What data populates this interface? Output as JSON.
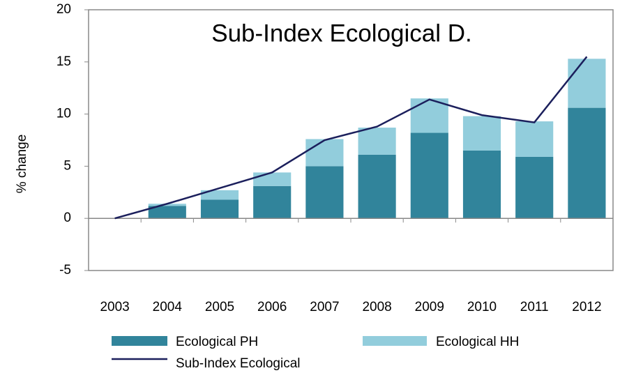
{
  "chart_data": {
    "type": "bar",
    "stacked": true,
    "title": "Sub-Index Ecological D.",
    "y_label": "% change",
    "categories": [
      "2003",
      "2004",
      "2005",
      "2006",
      "2007",
      "2008",
      "2009",
      "2010",
      "2011",
      "2012"
    ],
    "series": [
      {
        "name": "Ecological PH",
        "color": "#31849b",
        "values": [
          0,
          1.2,
          1.8,
          3.1,
          5.0,
          6.1,
          8.2,
          6.5,
          5.9,
          10.6
        ]
      },
      {
        "name": "Ecological HH",
        "color": "#92cddc",
        "values": [
          0,
          0.2,
          0.9,
          1.3,
          2.6,
          2.6,
          3.3,
          3.3,
          3.4,
          4.7
        ]
      },
      {
        "name": "Sub-Index  Ecological",
        "type": "line",
        "color": "#1b1f5c",
        "values": [
          0,
          1.4,
          2.9,
          4.4,
          7.5,
          8.8,
          11.4,
          9.9,
          9.2,
          15.5
        ]
      }
    ],
    "ylim": [
      -5,
      20
    ],
    "yticks": [
      -5,
      0,
      5,
      10,
      15,
      20
    ],
    "grid": false
  }
}
